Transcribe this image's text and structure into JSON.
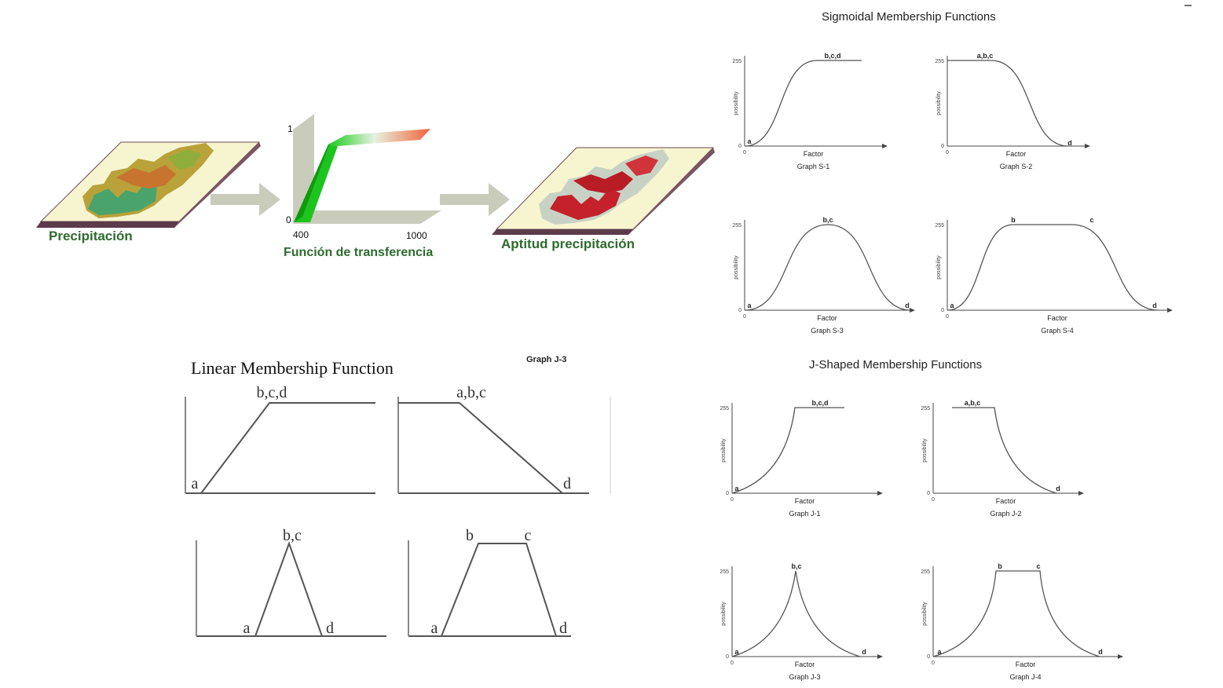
{
  "workflow": {
    "precip_label": "Precipitación",
    "transfer_label": "Función de transferencia",
    "aptitud_label": "Aptitud precipitación",
    "y_top": "1",
    "y_bottom": "0",
    "x_left": "400",
    "x_right": "1000"
  },
  "sigmoidal": {
    "title": "Sigmoidal Membership Functions",
    "ylabel": "possibility",
    "xlabel": "Factor",
    "y_max": "255",
    "y_min": "0",
    "x_zero": "0",
    "graphs": [
      {
        "name": "Graph S-1",
        "labels": [
          "a",
          "b,c,d"
        ]
      },
      {
        "name": "Graph S-2",
        "labels": [
          "a,b,c",
          "d"
        ]
      },
      {
        "name": "Graph S-3",
        "labels": [
          "a",
          "b,c",
          "d"
        ]
      },
      {
        "name": "Graph S-4",
        "labels": [
          "a",
          "b",
          "c",
          "d"
        ]
      }
    ]
  },
  "jshaped": {
    "title": "J-Shaped Membership Functions",
    "ylabel": "possibility",
    "xlabel": "Factor",
    "y_max": "255",
    "y_min": "0",
    "x_zero": "0",
    "graphs": [
      {
        "name": "Graph J-1",
        "labels": [
          "a",
          "b,c,d"
        ]
      },
      {
        "name": "Graph J-2",
        "labels": [
          "a,b,c",
          "d"
        ]
      },
      {
        "name": "Graph J-3",
        "labels": [
          "a",
          "b,c",
          "d"
        ]
      },
      {
        "name": "Graph J-4",
        "labels": [
          "a",
          "b",
          "c",
          "d"
        ]
      }
    ]
  },
  "linear": {
    "title": "Linear Membership Function",
    "overlay_caption": "Graph J-3",
    "graphs": [
      {
        "labels": [
          "a",
          "b,c,d"
        ]
      },
      {
        "labels": [
          "a,b,c",
          "d"
        ]
      },
      {
        "labels": [
          "a",
          "b,c",
          "d"
        ]
      },
      {
        "labels": [
          "a",
          "b",
          "c",
          "d"
        ]
      }
    ]
  },
  "colors": {
    "map_base": "#f7f5d0",
    "map_edge": "#6b4a55",
    "arrow": "#c9ccbb",
    "label_green": "#2e6b2e",
    "curve": "#555555"
  }
}
